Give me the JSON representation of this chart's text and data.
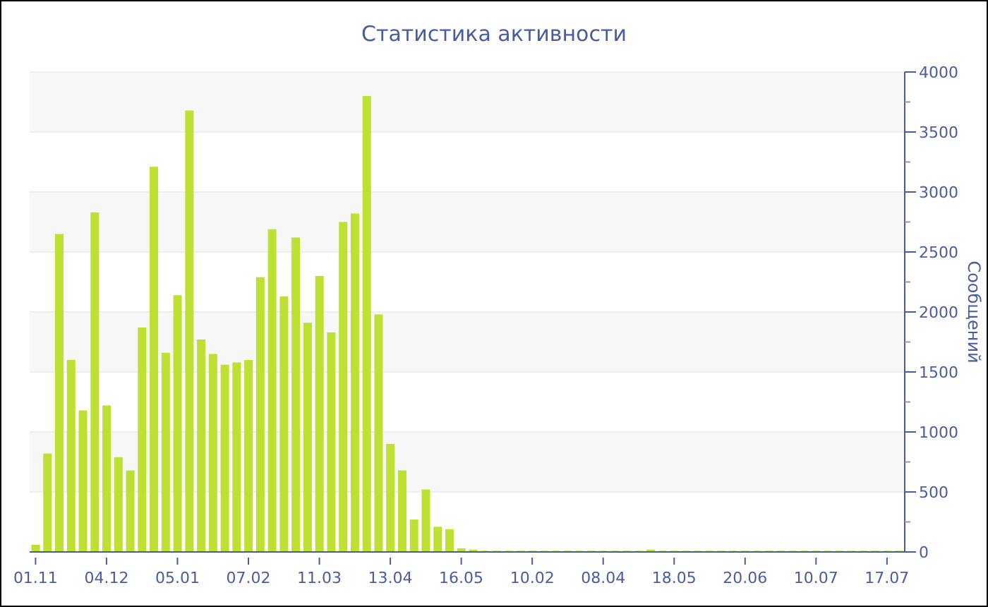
{
  "chart_data": {
    "type": "bar",
    "title": "Статистика активности",
    "ylabel": "Сообщений",
    "categories": [
      "01.11",
      null,
      null,
      null,
      null,
      null,
      "04.12",
      null,
      null,
      null,
      null,
      null,
      "05.01",
      null,
      null,
      null,
      null,
      null,
      "07.02",
      null,
      null,
      null,
      null,
      null,
      "11.03",
      null,
      null,
      null,
      null,
      null,
      "13.04",
      null,
      null,
      null,
      null,
      null,
      "16.05",
      null,
      null,
      null,
      null,
      null,
      "10.02",
      null,
      null,
      null,
      null,
      null,
      "08.04",
      null,
      null,
      null,
      null,
      null,
      "18.05",
      null,
      null,
      null,
      null,
      null,
      "20.06",
      null,
      null,
      null,
      null,
      null,
      "10.07",
      null,
      null,
      null,
      null,
      null,
      "17.07",
      null
    ],
    "values": [
      60,
      820,
      2650,
      1600,
      1180,
      2830,
      1220,
      790,
      680,
      1870,
      3210,
      1660,
      2140,
      3680,
      1770,
      1650,
      1560,
      1580,
      1600,
      2290,
      2690,
      2130,
      2620,
      1910,
      2300,
      1830,
      2750,
      2820,
      3800,
      1980,
      900,
      680,
      270,
      520,
      210,
      190,
      30,
      20,
      10,
      10,
      10,
      10,
      10,
      10,
      10,
      10,
      10,
      10,
      10,
      10,
      10,
      10,
      20,
      10,
      10,
      10,
      10,
      10,
      10,
      10,
      10,
      10,
      10,
      10,
      10,
      10,
      10,
      10,
      10,
      10,
      10,
      10,
      10,
      10
    ],
    "color": "#bde033",
    "ylim": [
      0,
      4000
    ],
    "yticks": [
      0,
      {
        "value": 250,
        "label": null
      },
      500,
      {
        "value": 750,
        "label": null
      },
      1000,
      {
        "value": 1250,
        "label": null
      },
      1500,
      {
        "value": 1750,
        "label": null
      },
      2000,
      {
        "value": 2250,
        "label": null
      },
      2500,
      {
        "value": 2750,
        "label": null
      },
      3000,
      {
        "value": 3250,
        "label": null
      },
      3500,
      {
        "value": 3750,
        "label": null
      },
      4000
    ],
    "grid": "y"
  }
}
